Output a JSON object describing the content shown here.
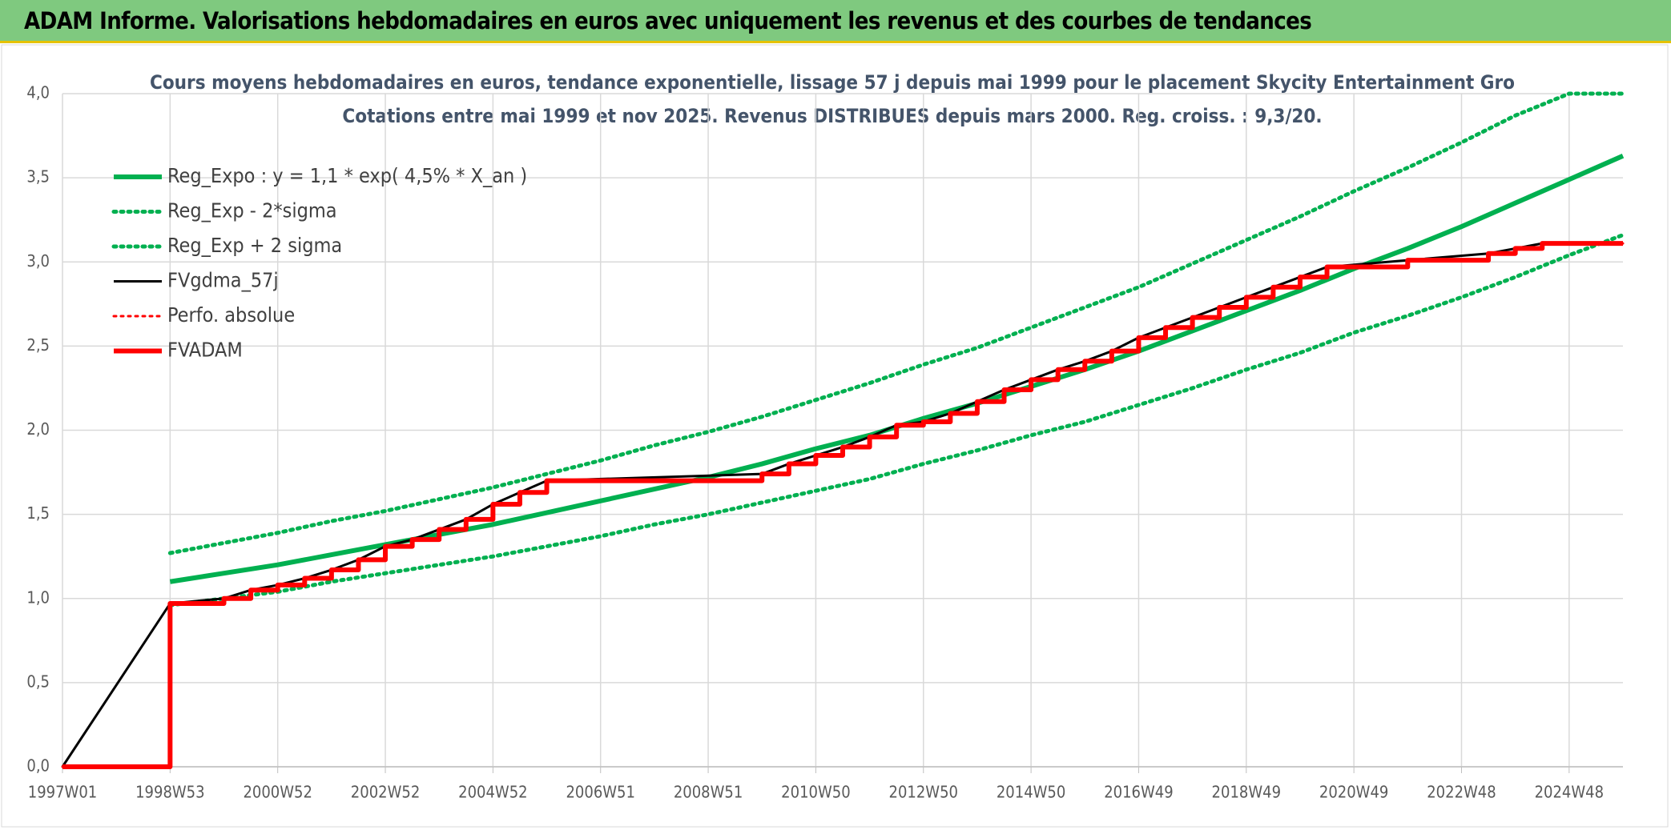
{
  "header": {
    "title": "ADAM Informe. Valorisations hebdomadaires en euros avec uniquement les revenus et des courbes de tendances"
  },
  "chart_data": {
    "type": "line",
    "title": "Cours moyens hebdomadaires en euros, tendance exponentielle, lissage 57 j depuis mai 1999 pour le placement Skycity Entertainment Gro",
    "subtitle": "Cotations entre mai 1999 et nov 2025. Revenus DISTRIBUES depuis mars 2000. Reg. croiss. : 9,3/20.",
    "xlim": [
      1997,
      2026
    ],
    "xticks": [
      {
        "value": 1997,
        "label": "1997W01"
      },
      {
        "value": 1999,
        "label": "1998W53"
      },
      {
        "value": 2001,
        "label": "2000W52"
      },
      {
        "value": 2003,
        "label": "2002W52"
      },
      {
        "value": 2005,
        "label": "2004W52"
      },
      {
        "value": 2007,
        "label": "2006W51"
      },
      {
        "value": 2009,
        "label": "2008W51"
      },
      {
        "value": 2011,
        "label": "2010W50"
      },
      {
        "value": 2013,
        "label": "2012W50"
      },
      {
        "value": 2015,
        "label": "2014W50"
      },
      {
        "value": 2017,
        "label": "2016W49"
      },
      {
        "value": 2019,
        "label": "2018W49"
      },
      {
        "value": 2021,
        "label": "2020W49"
      },
      {
        "value": 2023,
        "label": "2022W48"
      },
      {
        "value": 2025,
        "label": "2024W48"
      }
    ],
    "ylim": [
      0,
      4
    ],
    "yticks": [
      {
        "value": 0,
        "label": "0,0"
      },
      {
        "value": 0.5,
        "label": "0,5"
      },
      {
        "value": 1,
        "label": "1,0"
      },
      {
        "value": 1.5,
        "label": "1,5"
      },
      {
        "value": 2,
        "label": "2,0"
      },
      {
        "value": 2.5,
        "label": "2,5"
      },
      {
        "value": 3,
        "label": "3,0"
      },
      {
        "value": 3.5,
        "label": "3,5"
      },
      {
        "value": 4,
        "label": "4,0"
      }
    ],
    "grid": true,
    "legend": "upper-left",
    "series": [
      {
        "name": "Reg_Expo : y = 1,1 * exp( 4,5% *  X_an )",
        "color": "#00b050",
        "dash": false,
        "step": false,
        "width": 6,
        "x": [
          1999,
          2000,
          2001,
          2002,
          2003,
          2004,
          2005,
          2006,
          2007,
          2008,
          2009,
          2010,
          2011,
          2012,
          2013,
          2014,
          2015,
          2016,
          2017,
          2018,
          2019,
          2020,
          2021,
          2022,
          2023,
          2024,
          2025,
          2026
        ],
        "values": [
          1.1,
          1.15,
          1.2,
          1.26,
          1.32,
          1.38,
          1.44,
          1.51,
          1.58,
          1.65,
          1.72,
          1.8,
          1.89,
          1.97,
          2.07,
          2.16,
          2.26,
          2.36,
          2.47,
          2.59,
          2.71,
          2.83,
          2.96,
          3.08,
          3.21,
          3.35,
          3.49,
          3.63
        ]
      },
      {
        "name": "Reg_Exp - 2*sigma",
        "color": "#00b050",
        "dash": true,
        "step": false,
        "width": 5,
        "x": [
          1999,
          2000,
          2001,
          2002,
          2003,
          2004,
          2005,
          2006,
          2007,
          2008,
          2009,
          2010,
          2011,
          2012,
          2013,
          2014,
          2015,
          2016,
          2017,
          2018,
          2019,
          2020,
          2021,
          2022,
          2023,
          2024,
          2025,
          2026
        ],
        "values": [
          0.96,
          1.0,
          1.04,
          1.1,
          1.15,
          1.2,
          1.25,
          1.31,
          1.37,
          1.44,
          1.5,
          1.57,
          1.64,
          1.71,
          1.8,
          1.88,
          1.97,
          2.05,
          2.15,
          2.25,
          2.36,
          2.46,
          2.58,
          2.68,
          2.79,
          2.91,
          3.04,
          3.16
        ]
      },
      {
        "name": "Reg_Exp + 2 sigma",
        "color": "#00b050",
        "dash": true,
        "step": false,
        "width": 5,
        "x": [
          1999,
          2000,
          2001,
          2002,
          2003,
          2004,
          2005,
          2006,
          2007,
          2008,
          2009,
          2010,
          2011,
          2012,
          2013,
          2014,
          2015,
          2016,
          2017,
          2018,
          2019,
          2020,
          2021,
          2022,
          2023,
          2024,
          2025,
          2026
        ],
        "values": [
          1.27,
          1.33,
          1.39,
          1.46,
          1.52,
          1.59,
          1.66,
          1.74,
          1.82,
          1.91,
          1.99,
          2.08,
          2.18,
          2.28,
          2.39,
          2.49,
          2.61,
          2.73,
          2.85,
          2.99,
          3.13,
          3.27,
          3.42,
          3.56,
          3.71,
          3.87,
          4.0,
          4.0
        ]
      },
      {
        "name": "FVgdma_57j",
        "color": "#000000",
        "dash": false,
        "step": false,
        "width": 3,
        "x": [
          1997,
          1999,
          2000,
          2000.5,
          2001,
          2001.5,
          2002,
          2002.5,
          2003,
          2003.5,
          2004,
          2004.5,
          2005,
          2005.5,
          2006,
          2010,
          2010.5,
          2011,
          2011.5,
          2012,
          2012.5,
          2013,
          2013.5,
          2014,
          2014.5,
          2015,
          2015.5,
          2016,
          2016.5,
          2017,
          2017.5,
          2018,
          2018.5,
          2019,
          2019.5,
          2020,
          2020.5,
          2022,
          2023.5,
          2024,
          2024.5,
          2026
        ],
        "values": [
          0,
          0.97,
          1.0,
          1.05,
          1.08,
          1.12,
          1.17,
          1.23,
          1.31,
          1.35,
          1.41,
          1.47,
          1.56,
          1.63,
          1.7,
          1.74,
          1.8,
          1.85,
          1.9,
          1.96,
          2.03,
          2.05,
          2.1,
          2.17,
          2.24,
          2.3,
          2.36,
          2.41,
          2.47,
          2.55,
          2.61,
          2.67,
          2.73,
          2.79,
          2.85,
          2.91,
          2.97,
          3.01,
          3.05,
          3.08,
          3.11,
          3.11
        ]
      },
      {
        "name": "Perfo. absolue",
        "color": "#ff0000",
        "dash": true,
        "step": true,
        "width": 3,
        "x": [
          1997,
          1999,
          2000,
          2000.5,
          2001,
          2001.5,
          2002,
          2002.5,
          2003,
          2003.5,
          2004,
          2004.5,
          2005,
          2005.5,
          2006,
          2010,
          2010.5,
          2011,
          2011.5,
          2012,
          2012.5,
          2013,
          2013.5,
          2014,
          2014.5,
          2015,
          2015.5,
          2016,
          2016.5,
          2017,
          2017.5,
          2018,
          2018.5,
          2019,
          2019.5,
          2020,
          2020.5,
          2022,
          2023.5,
          2024,
          2024.5,
          2026
        ],
        "values": [
          0,
          0.97,
          1.0,
          1.05,
          1.08,
          1.12,
          1.17,
          1.23,
          1.31,
          1.35,
          1.41,
          1.47,
          1.56,
          1.63,
          1.7,
          1.74,
          1.8,
          1.85,
          1.9,
          1.96,
          2.03,
          2.05,
          2.1,
          2.17,
          2.24,
          2.3,
          2.36,
          2.41,
          2.47,
          2.55,
          2.61,
          2.67,
          2.73,
          2.79,
          2.85,
          2.91,
          2.97,
          3.01,
          3.05,
          3.08,
          3.11,
          3.11
        ]
      },
      {
        "name": "FVADAM",
        "color": "#ff0000",
        "dash": false,
        "step": true,
        "width": 6,
        "x": [
          1997,
          1999,
          2000,
          2000.5,
          2001,
          2001.5,
          2002,
          2002.5,
          2003,
          2003.5,
          2004,
          2004.5,
          2005,
          2005.5,
          2006,
          2010,
          2010.5,
          2011,
          2011.5,
          2012,
          2012.5,
          2013,
          2013.5,
          2014,
          2014.5,
          2015,
          2015.5,
          2016,
          2016.5,
          2017,
          2017.5,
          2018,
          2018.5,
          2019,
          2019.5,
          2020,
          2020.5,
          2022,
          2023.5,
          2024,
          2024.5,
          2026
        ],
        "values": [
          0,
          0.97,
          1.0,
          1.05,
          1.08,
          1.12,
          1.17,
          1.23,
          1.31,
          1.35,
          1.41,
          1.47,
          1.56,
          1.63,
          1.7,
          1.74,
          1.8,
          1.85,
          1.9,
          1.96,
          2.03,
          2.05,
          2.1,
          2.17,
          2.24,
          2.3,
          2.36,
          2.41,
          2.47,
          2.55,
          2.61,
          2.67,
          2.73,
          2.79,
          2.85,
          2.91,
          2.97,
          3.01,
          3.05,
          3.08,
          3.11,
          3.11
        ]
      }
    ]
  }
}
